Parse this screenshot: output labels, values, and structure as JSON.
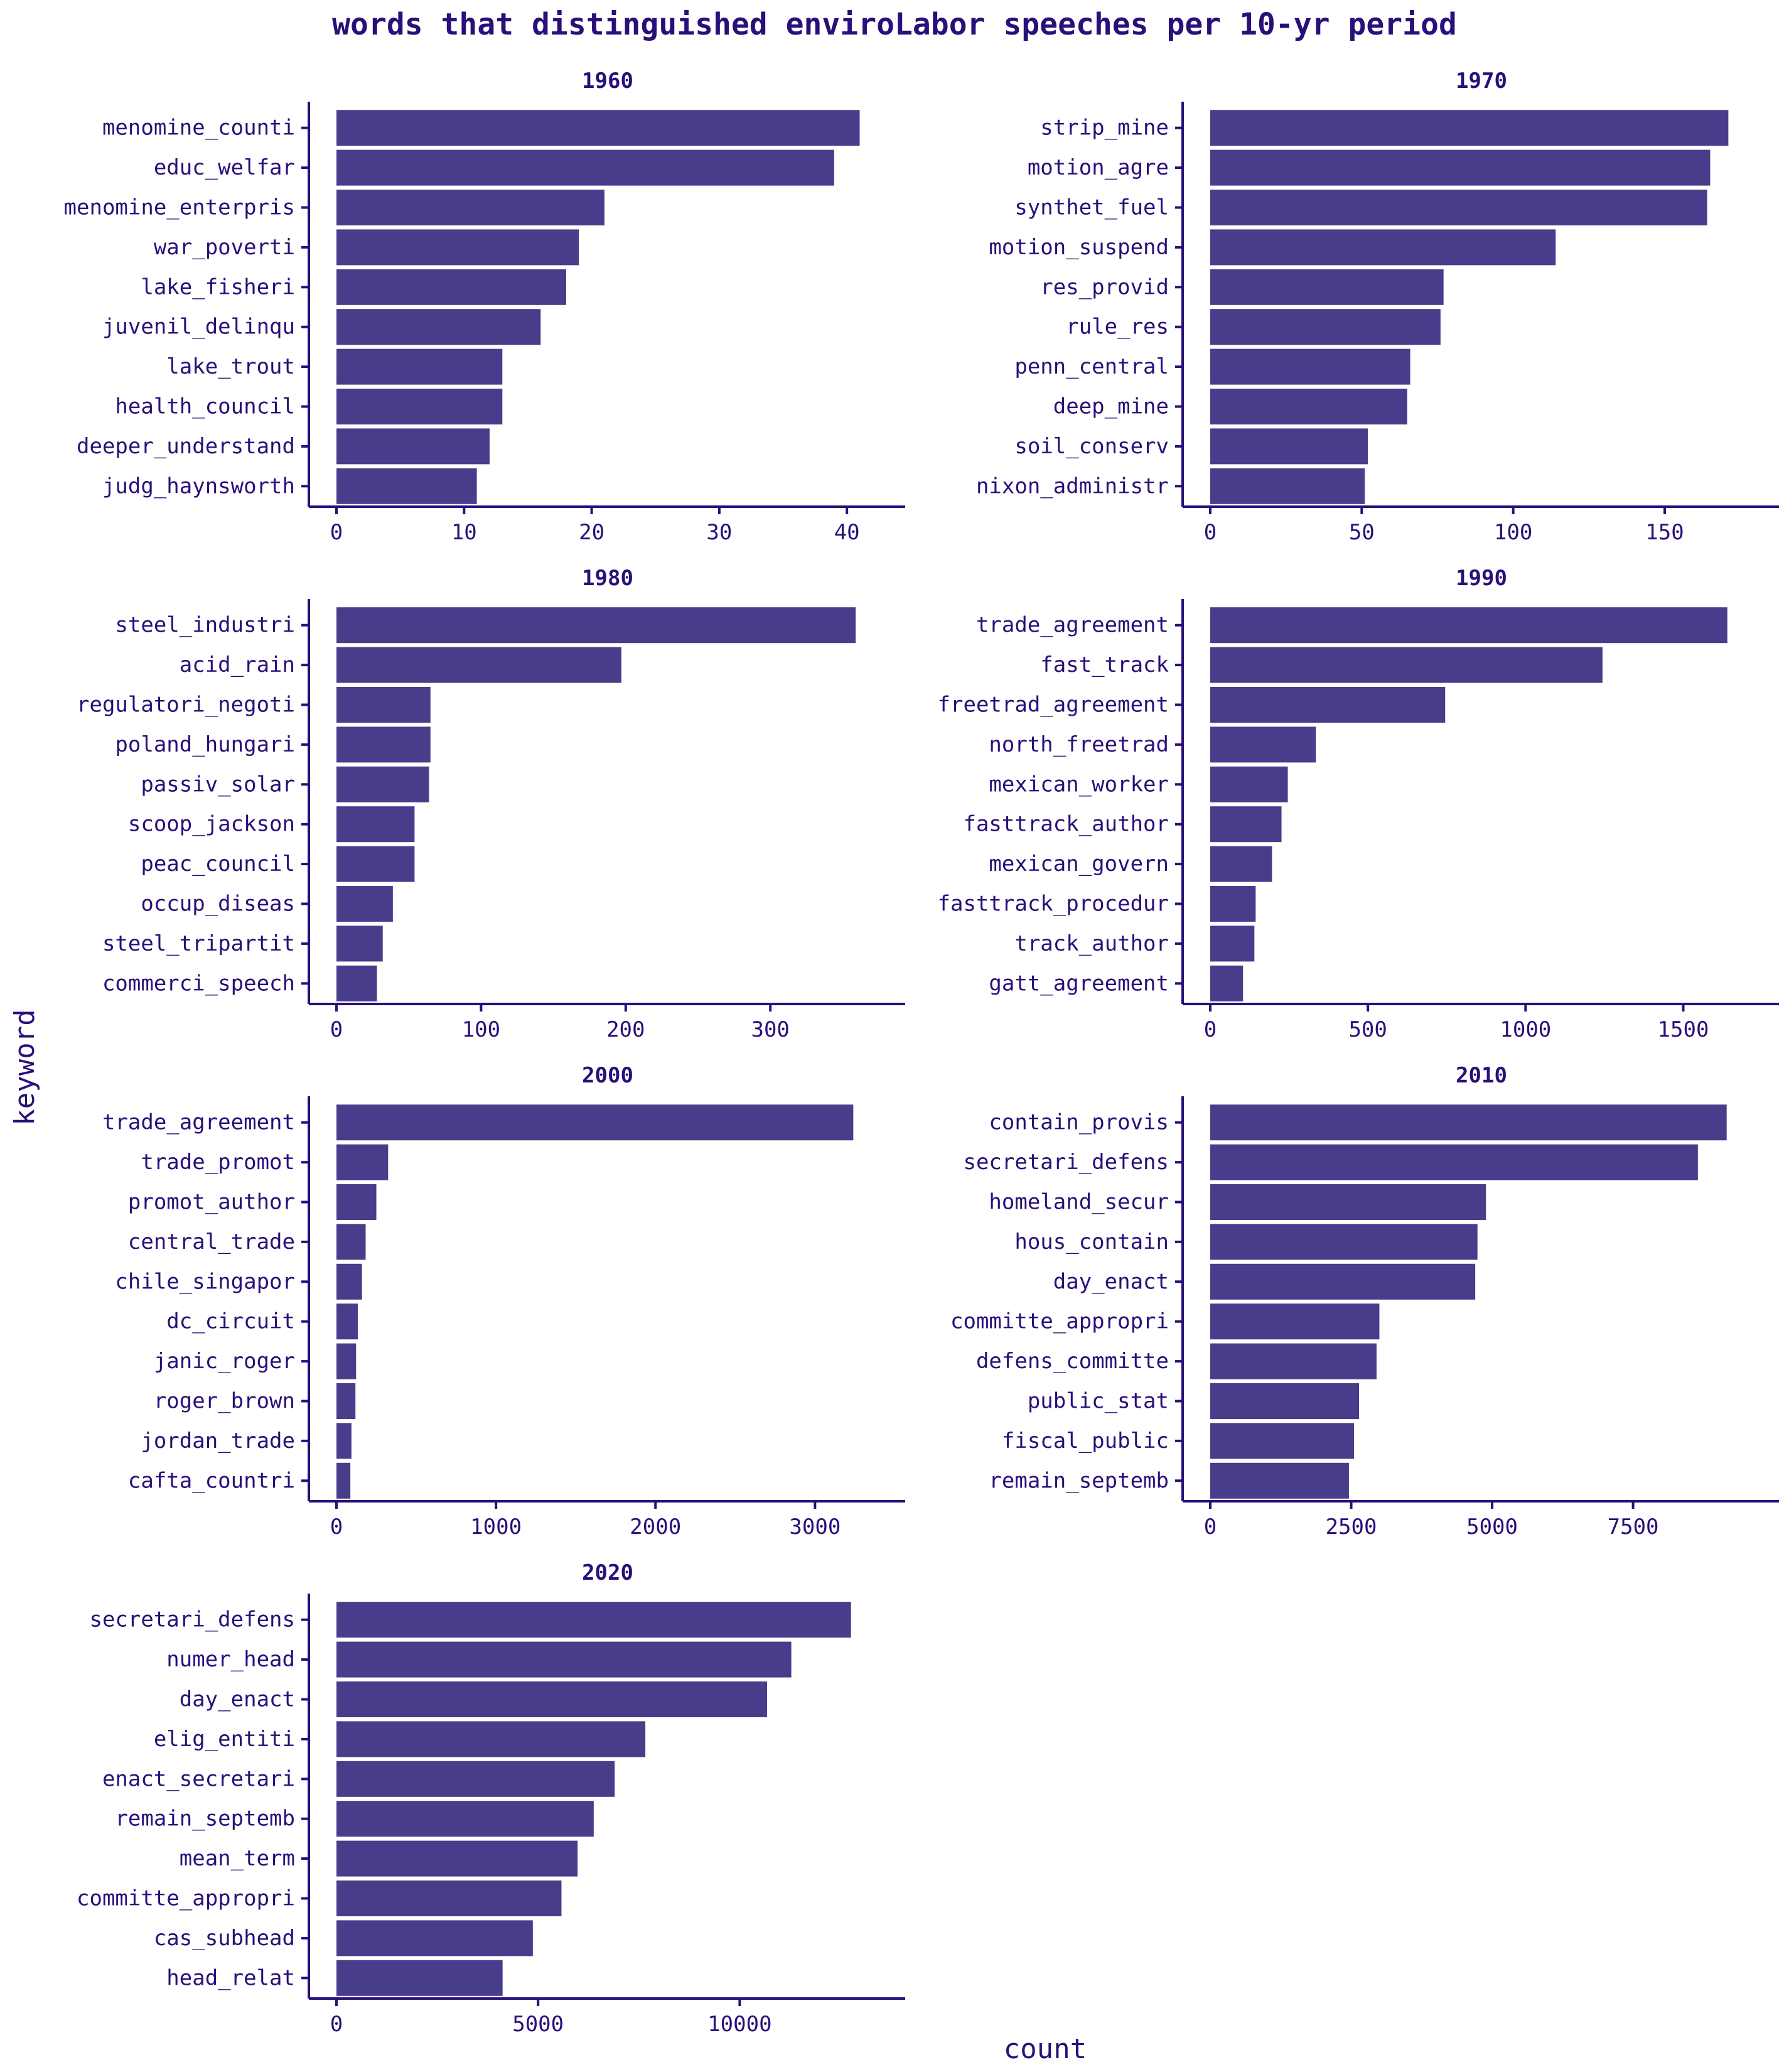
{
  "colors": {
    "bar": "#483d8b",
    "axis": "#2a0f7a",
    "text": "#2a0f7a",
    "background": "#ffffff"
  },
  "chart_data": {
    "type": "bar",
    "orientation": "horizontal",
    "facet_layout": "2 columns, free x scales",
    "title": "words that distinguished enviroLabor speeches per 10-yr period",
    "xlabel": "count",
    "ylabel": "keyword",
    "grid": false,
    "legend": "none",
    "panels": [
      {
        "title": "1960",
        "xlim": [
          0,
          42.5
        ],
        "xticks": [
          0,
          10,
          20,
          30,
          40
        ],
        "xtick_labels": [
          "0",
          "10",
          "20",
          "30",
          "40"
        ],
        "categories": [
          "menomine_counti",
          "educ_welfar",
          "menomine_enterpris",
          "war_poverti",
          "lake_fisheri",
          "juvenil_delinqu",
          "lake_trout",
          "health_council",
          "deeper_understand",
          "judg_haynsworth"
        ],
        "values": [
          41,
          39,
          21,
          19,
          18,
          16,
          13,
          13,
          12,
          11
        ]
      },
      {
        "title": "1970",
        "xlim": [
          0,
          179
        ],
        "xticks": [
          0,
          50,
          100,
          150
        ],
        "xtick_labels": [
          "0",
          "50",
          "100",
          "150"
        ],
        "categories": [
          "strip_mine",
          "motion_agre",
          "synthet_fuel",
          "motion_suspend",
          "res_provid",
          "rule_res",
          "penn_central",
          "deep_mine",
          "soil_conserv",
          "nixon_administr"
        ],
        "values": [
          171,
          165,
          164,
          114,
          77,
          76,
          66,
          65,
          52,
          51
        ]
      },
      {
        "title": "1980",
        "xlim": [
          0,
          375
        ],
        "xticks": [
          0,
          100,
          200,
          300
        ],
        "xtick_labels": [
          "0",
          "100",
          "200",
          "300"
        ],
        "categories": [
          "steel_industri",
          "acid_rain",
          "regulatori_negoti",
          "poland_hungari",
          "passiv_solar",
          "scoop_jackson",
          "peac_council",
          "occup_diseas",
          "steel_tripartit",
          "commerci_speech"
        ],
        "values": [
          359,
          197,
          65,
          65,
          64,
          54,
          54,
          39,
          32,
          28
        ]
      },
      {
        "title": "1990",
        "xlim": [
          0,
          1720
        ],
        "xticks": [
          0,
          500,
          1000,
          1500
        ],
        "xtick_labels": [
          "0",
          "500",
          "1000",
          "1500"
        ],
        "categories": [
          "trade_agreement",
          "fast_track",
          "freetrad_agreement",
          "north_freetrad",
          "mexican_worker",
          "fasttrack_author",
          "mexican_govern",
          "fasttrack_procedur",
          "track_author",
          "gatt_agreement"
        ],
        "values": [
          1640,
          1244,
          745,
          335,
          246,
          226,
          196,
          144,
          140,
          104
        ]
      },
      {
        "title": "2000",
        "xlim": [
          0,
          3400
        ],
        "xticks": [
          0,
          1000,
          2000,
          3000
        ],
        "xtick_labels": [
          "0",
          "1000",
          "2000",
          "3000"
        ],
        "categories": [
          "trade_agreement",
          "trade_promot",
          "promot_author",
          "central_trade",
          "chile_singapor",
          "dc_circuit",
          "janic_roger",
          "roger_brown",
          "jordan_trade",
          "cafta_countri"
        ],
        "values": [
          3240,
          324,
          250,
          183,
          160,
          134,
          123,
          119,
          94,
          87
        ]
      },
      {
        "title": "2010",
        "xlim": [
          0,
          9620
        ],
        "xticks": [
          0,
          2500,
          5000,
          7500
        ],
        "xtick_labels": [
          "0",
          "2500",
          "5000",
          "7500"
        ],
        "categories": [
          "contain_provis",
          "secretari_defens",
          "homeland_secur",
          "hous_contain",
          "day_enact",
          "committe_appropri",
          "defens_committe",
          "public_stat",
          "fiscal_public",
          "remain_septemb"
        ],
        "values": [
          9160,
          8650,
          4890,
          4740,
          4700,
          3000,
          2950,
          2640,
          2550,
          2460
        ]
      },
      {
        "title": "2020",
        "xlim": [
          0,
          13450
        ],
        "xticks": [
          0,
          5000,
          10000
        ],
        "xtick_labels": [
          "0",
          "5000",
          "10000"
        ],
        "categories": [
          "secretari_defens",
          "numer_head",
          "day_enact",
          "elig_entiti",
          "enact_secretari",
          "remain_septemb",
          "mean_term",
          "committe_appropri",
          "cas_subhead",
          "head_relat"
        ],
        "values": [
          12760,
          11280,
          10680,
          7660,
          6900,
          6380,
          5980,
          5580,
          4870,
          4120
        ]
      }
    ]
  }
}
